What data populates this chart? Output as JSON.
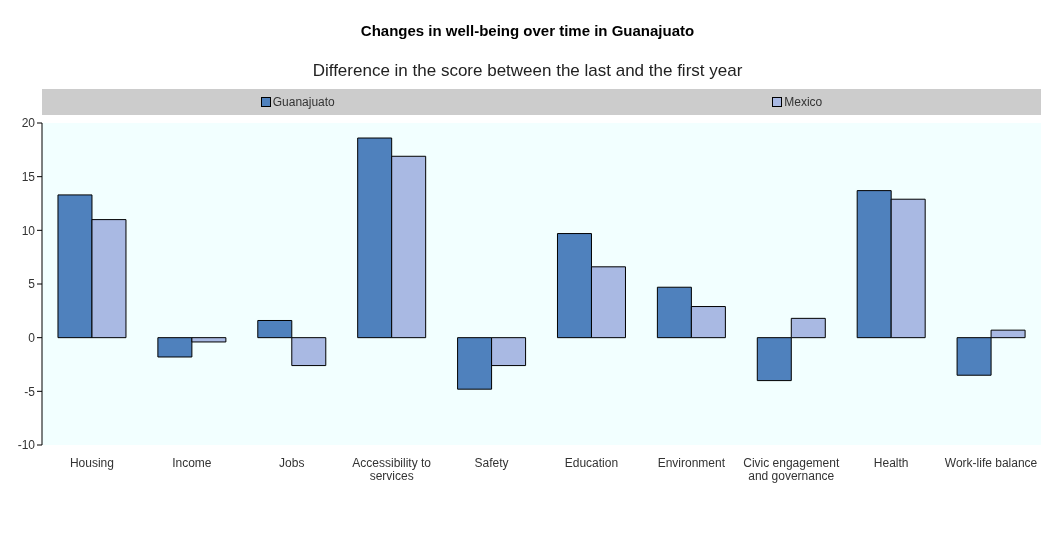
{
  "chart_data": {
    "type": "bar",
    "title": "Changes in well-being over time in Guanajuato",
    "subtitle": "Difference in the score between the last and the first year",
    "categories": [
      "Housing",
      "Income",
      "Jobs",
      "Accessibility to services",
      "Safety",
      "Education",
      "Environment",
      "Civic engagement and governance",
      "Health",
      "Work-life balance"
    ],
    "series": [
      {
        "name": "Guanajuato",
        "color": "#4f81bd",
        "values": [
          13.3,
          -1.8,
          1.6,
          18.6,
          -4.8,
          9.7,
          4.7,
          -4.0,
          13.7,
          -3.5
        ]
      },
      {
        "name": "Mexico",
        "color": "#a9b9e3",
        "values": [
          11.0,
          -0.4,
          -2.6,
          16.9,
          -2.6,
          6.6,
          2.9,
          1.8,
          12.9,
          0.7
        ]
      }
    ],
    "ylim": [
      -10,
      20
    ],
    "yticks": [
      -10,
      -5,
      0,
      5,
      10,
      15,
      20
    ],
    "grid": false,
    "legend": "top"
  }
}
